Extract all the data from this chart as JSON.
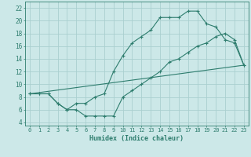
{
  "xlabel": "Humidex (Indice chaleur)",
  "xlim": [
    -0.5,
    23.5
  ],
  "ylim": [
    3.5,
    23
  ],
  "xticks": [
    0,
    1,
    2,
    3,
    4,
    5,
    6,
    7,
    8,
    9,
    10,
    11,
    12,
    13,
    14,
    15,
    16,
    17,
    18,
    19,
    20,
    21,
    22,
    23
  ],
  "yticks": [
    4,
    6,
    8,
    10,
    12,
    14,
    16,
    18,
    20,
    22
  ],
  "bg_color": "#cce8e8",
  "grid_color": "#aacfcf",
  "line_color": "#2e7d6e",
  "line1_x": [
    0,
    1,
    2,
    3,
    4,
    5,
    6,
    7,
    8,
    9,
    10,
    11,
    12,
    13,
    14,
    15,
    16,
    17,
    18,
    19,
    20,
    21,
    22,
    23
  ],
  "line1_y": [
    8.5,
    8.5,
    8.5,
    7.0,
    6.0,
    7.0,
    7.0,
    8.0,
    8.5,
    12.0,
    14.5,
    16.5,
    17.5,
    18.5,
    20.5,
    20.5,
    20.5,
    21.5,
    21.5,
    19.5,
    19.0,
    17.0,
    16.5,
    13.0
  ],
  "line2_x": [
    0,
    1,
    2,
    3,
    4,
    5,
    6,
    7,
    8,
    9,
    10,
    11,
    12,
    13,
    14,
    15,
    16,
    17,
    18,
    19,
    20,
    21,
    22,
    23
  ],
  "line2_y": [
    8.5,
    8.5,
    8.5,
    7.0,
    6.0,
    6.0,
    5.0,
    5.0,
    5.0,
    5.0,
    8.0,
    9.0,
    10.0,
    11.0,
    12.0,
    13.5,
    14.0,
    15.0,
    16.0,
    16.5,
    17.5,
    18.0,
    17.0,
    13.0
  ],
  "line3_x": [
    0,
    23
  ],
  "line3_y": [
    8.5,
    13.0
  ]
}
